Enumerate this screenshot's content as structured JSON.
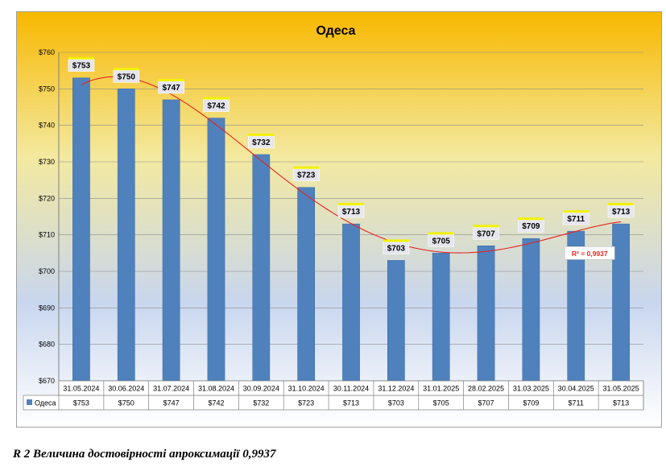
{
  "chart_data": {
    "type": "bar",
    "title": "Одеса",
    "categories": [
      "31.05.2024",
      "30.06.2024",
      "31.07.2024",
      "31.08.2024",
      "30.09.2024",
      "31.10.2024",
      "30.11.2024",
      "31.12.2024",
      "31.01.2025",
      "28.02.2025",
      "31.03.2025",
      "30.04.2025",
      "31.05.2025"
    ],
    "series": [
      {
        "name": "Одеса",
        "values": [
          753,
          750,
          747,
          742,
          732,
          723,
          713,
          703,
          705,
          707,
          709,
          711,
          713
        ],
        "color": "#4f81bd"
      }
    ],
    "data_labels": [
      "$753",
      "$750",
      "$747",
      "$742",
      "$732",
      "$723",
      "$713",
      "$703",
      "$705",
      "$707",
      "$709",
      "$711",
      "$713"
    ],
    "ylim": [
      670,
      760
    ],
    "yticks": [
      670,
      680,
      690,
      700,
      710,
      720,
      730,
      740,
      750,
      760
    ],
    "ytick_labels": [
      "$670",
      "$680",
      "$690",
      "$700",
      "$710",
      "$720",
      "$730",
      "$740",
      "$750",
      "$760"
    ],
    "gridlines": true,
    "data_table": true,
    "trendline": {
      "type": "polynomial",
      "label": "R² = 0,9937",
      "color": "#e8231f"
    },
    "background_gradient": [
      "#f8b800",
      "#f3e9a0",
      "#c8d6ee"
    ]
  },
  "caption": "R 2 Величина достовірності апроксимації 0,9937"
}
